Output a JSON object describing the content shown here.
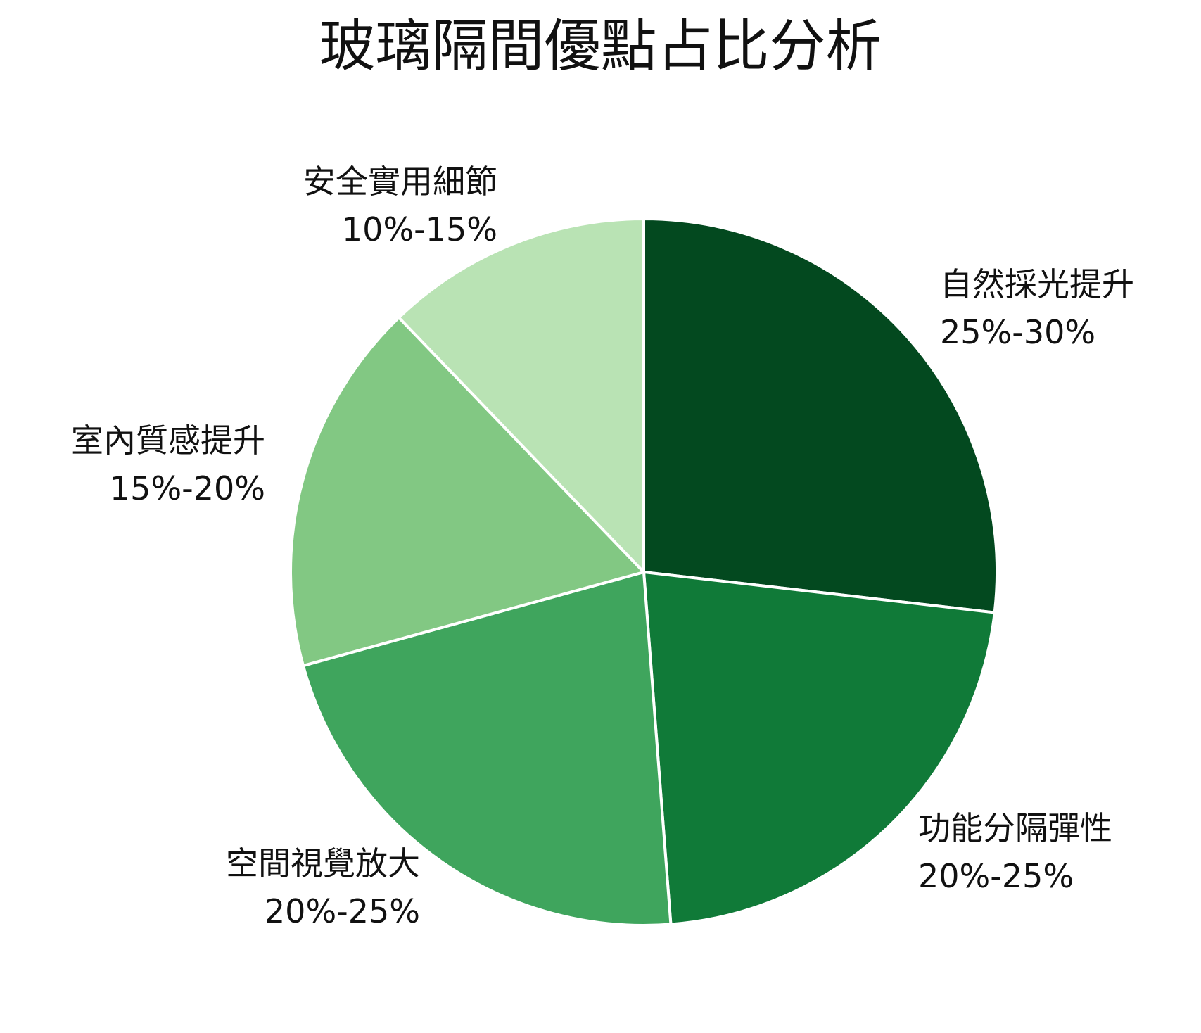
{
  "chart_data": {
    "type": "pie",
    "title": "玻璃隔間優點占比分析",
    "categories": [
      "自然採光提升",
      "功能分隔彈性",
      "空間視覺放大",
      "室內質感提升",
      "安全實用細節"
    ],
    "range_labels": [
      "25%-30%",
      "20%-25%",
      "20%-25%",
      "15%-20%",
      "10%-15%"
    ],
    "values": [
      27.5,
      22.5,
      22.5,
      17.5,
      12.5
    ],
    "colors": [
      "#03491f",
      "#107a38",
      "#3fa55d",
      "#82c883",
      "#b9e3b4"
    ],
    "start_angle": "12 o'clock",
    "direction": "clockwise",
    "legend": "none"
  }
}
